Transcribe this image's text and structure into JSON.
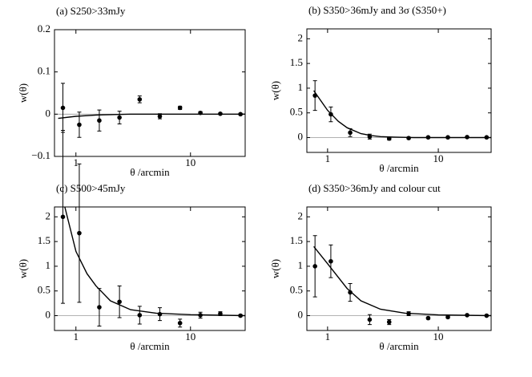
{
  "chart_data": [
    {
      "type": "errorbar",
      "title": "(a) S250>33mJy",
      "xlabel": "θ /arcmin",
      "ylabel": "w(θ)",
      "log_x": true,
      "xlim": [
        0.65,
        30
      ],
      "xticks": [
        1,
        10
      ],
      "ylim": [
        -0.1,
        0.2
      ],
      "yticks": [
        {
          "value": -0.1,
          "label": "−0.1"
        },
        0,
        0.1,
        0.2
      ],
      "zero_line": true,
      "color": "#000000",
      "x": [
        0.77,
        1.07,
        1.6,
        2.4,
        3.6,
        5.4,
        8.1,
        12.2,
        18.2,
        27.3
      ],
      "values": [
        0.015,
        -0.025,
        -0.015,
        -0.008,
        0.035,
        -0.005,
        0.015,
        0.003,
        0.001,
        0
      ],
      "errors": [
        0.058,
        0.03,
        0.025,
        0.015,
        0.008,
        0.006,
        0.004,
        0.003,
        0.002,
        0.002
      ],
      "model": {
        "x": [
          0.7,
          1,
          1.5,
          2,
          3,
          5,
          10,
          30
        ],
        "values": [
          -0.01,
          -0.005,
          -0.002,
          -0.001,
          0,
          0,
          0,
          0
        ]
      }
    },
    {
      "type": "errorbar",
      "title": "(b) S350>36mJy and 3σ (S350+)",
      "xlabel": "θ /arcmin",
      "ylabel": "w(θ)",
      "log_x": true,
      "xlim": [
        0.65,
        30
      ],
      "xticks": [
        1,
        10
      ],
      "ylim": [
        -0.3,
        2.2
      ],
      "yticks": [
        0,
        0.5,
        1,
        1.5,
        2
      ],
      "zero_line": true,
      "color": "#000000",
      "x": [
        0.77,
        1.07,
        1.6,
        2.4,
        3.6,
        5.4,
        8.1,
        12.2,
        18.2,
        27.3
      ],
      "values": [
        0.85,
        0.47,
        0.1,
        0.02,
        -0.02,
        -0.01,
        0.005,
        0.005,
        0.01,
        0.005
      ],
      "errors": [
        0.3,
        0.15,
        0.08,
        0.05,
        0.03,
        0.02,
        0.01,
        0.01,
        0.01,
        0.01
      ],
      "model": {
        "x": [
          0.75,
          1,
          1.25,
          1.5,
          2,
          2.5,
          3,
          4,
          6,
          10,
          30
        ],
        "values": [
          0.95,
          0.55,
          0.33,
          0.2,
          0.08,
          0.04,
          0.02,
          0.01,
          0,
          0,
          0
        ]
      }
    },
    {
      "type": "errorbar",
      "title": "(c) S500>45mJy",
      "xlabel": "θ /arcmin",
      "ylabel": "w(θ)",
      "log_x": true,
      "xlim": [
        0.65,
        30
      ],
      "xticks": [
        1,
        10
      ],
      "ylim": [
        -0.3,
        2.2
      ],
      "yticks": [
        0,
        0.5,
        1,
        1.5,
        2
      ],
      "zero_line": true,
      "color": "#000000",
      "x": [
        0.77,
        1.07,
        1.6,
        2.4,
        3.6,
        5.4,
        8.1,
        12.2,
        18.2,
        27.3
      ],
      "values": [
        2.0,
        1.67,
        0.17,
        0.28,
        0.01,
        0.03,
        -0.15,
        0.01,
        0.04,
        0
      ],
      "errors": [
        1.75,
        1.4,
        0.38,
        0.32,
        0.18,
        0.13,
        0.08,
        0.06,
        0.04,
        0.02
      ],
      "model": {
        "x": [
          0.8,
          1,
          1.25,
          1.5,
          2,
          3,
          5,
          10,
          30
        ],
        "values": [
          2.2,
          1.3,
          0.85,
          0.6,
          0.3,
          0.12,
          0.05,
          0.02,
          0
        ]
      }
    },
    {
      "type": "errorbar",
      "title": "(d) S350>36mJy and colour cut",
      "xlabel": "θ /arcmin",
      "ylabel": "w(θ)",
      "log_x": true,
      "xlim": [
        0.65,
        30
      ],
      "xticks": [
        1,
        10
      ],
      "ylim": [
        -0.3,
        2.2
      ],
      "yticks": [
        0,
        0.5,
        1,
        1.5,
        2
      ],
      "zero_line": true,
      "color": "#000000",
      "x": [
        0.77,
        1.07,
        1.6,
        2.4,
        3.6,
        5.4,
        8.1,
        12.2,
        18.2,
        27.3
      ],
      "values": [
        1.0,
        1.1,
        0.47,
        -0.08,
        -0.13,
        0.04,
        -0.05,
        -0.03,
        0.01,
        0
      ],
      "errors": [
        0.62,
        0.33,
        0.18,
        0.1,
        0.05,
        0.04,
        0.02,
        0.02,
        0.01,
        0.01
      ],
      "model": {
        "x": [
          0.75,
          1,
          1.5,
          2,
          3,
          5,
          10,
          30
        ],
        "values": [
          1.4,
          1.05,
          0.55,
          0.3,
          0.13,
          0.05,
          0.015,
          0
        ]
      }
    }
  ]
}
